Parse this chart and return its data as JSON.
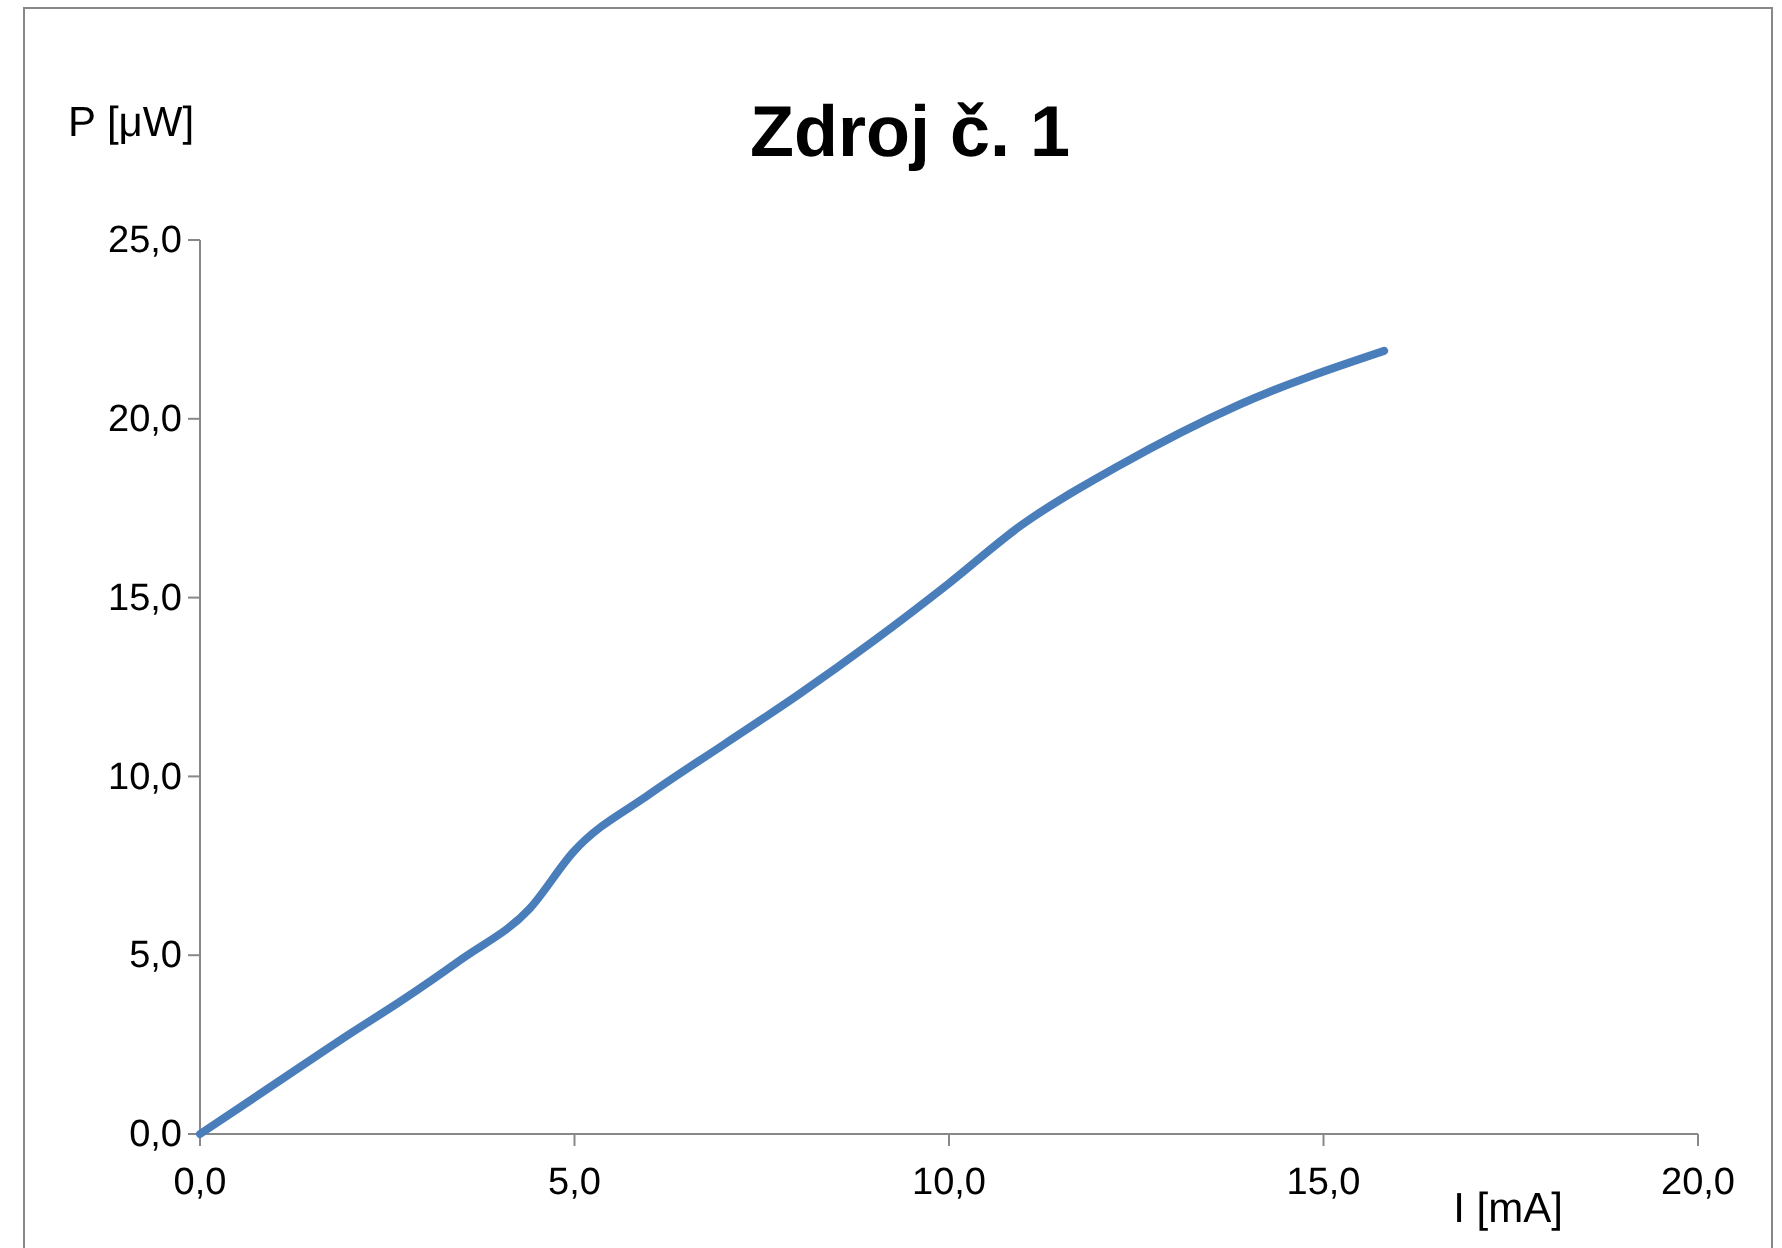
{
  "chart_data": {
    "type": "line",
    "title": "Zdroj č. 1",
    "xlabel": "I [mA]",
    "ylabel": "P [μW]",
    "x": [
      0,
      1,
      2,
      2.67,
      3.5,
      4.4,
      4.99,
      6,
      7,
      8,
      9,
      10,
      10.95,
      12.28,
      13.88,
      15.81
    ],
    "series": [
      {
        "color": "#4a7ebb",
        "values": [
          0,
          1.4,
          2.8,
          3.7,
          4.9,
          6.3,
          7.9,
          9.5,
          10.9,
          12.3,
          13.8,
          15.4,
          17.0,
          18.7,
          20.4,
          21.9
        ]
      }
    ],
    "xlim": [
      0,
      20
    ],
    "ylim": [
      0,
      25
    ],
    "xticks": [
      {
        "value": 0,
        "label": "0,0"
      },
      {
        "value": 5,
        "label": "5,0"
      },
      {
        "value": 10,
        "label": "10,0"
      },
      {
        "value": 15,
        "label": "15,0"
      },
      {
        "value": 20,
        "label": "20,0"
      }
    ],
    "yticks": [
      {
        "value": 0,
        "label": "0,0"
      },
      {
        "value": 5,
        "label": "5,0"
      },
      {
        "value": 10,
        "label": "10,0"
      },
      {
        "value": 15,
        "label": "15,0"
      },
      {
        "value": 20,
        "label": "20,0"
      },
      {
        "value": 25,
        "label": "25,0"
      }
    ],
    "grid": false,
    "marker": "none",
    "line_style": "solid"
  }
}
